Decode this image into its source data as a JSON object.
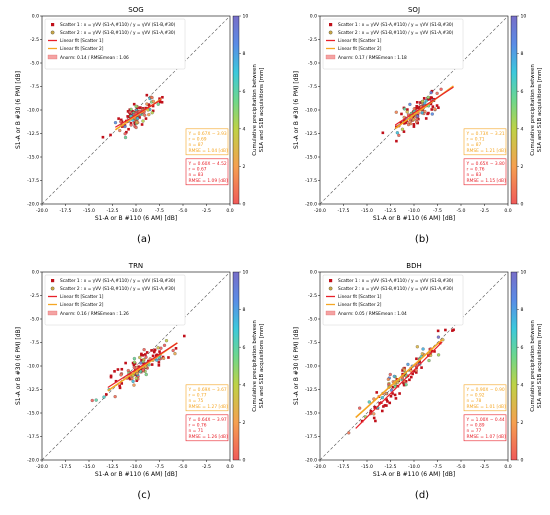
{
  "shared": {
    "xlabel": "S1-A or B #110 (6 AM) [dB]",
    "ylabel": "S1-A or B #30 (6 PM) [dB]",
    "cbar_label_line1": "Cumulative precipitation between",
    "cbar_label_line2": "S1A and S1B acquisitions [mm]",
    "cbar_ticks": [
      "0",
      "2",
      "4",
      "6",
      "8",
      "10"
    ],
    "x_ticks": [
      "-20.0",
      "-17.5",
      "-15.0",
      "-12.5",
      "-10.0",
      "-7.5",
      "-5.0",
      "-2.5",
      "0.0"
    ],
    "y_ticks": [
      "-20.0",
      "-17.5",
      "-15.0",
      "-12.5",
      "-10.0",
      "-7.5",
      "-5.0",
      "-2.5",
      "0.0"
    ],
    "legend": [
      {
        "label": "Scatter 1 : x = γVV (S1-A,#110) / y = γVV (S1-B,#30)"
      },
      {
        "label": "Scatter 2 : x = γVV (S1-B,#110) / y = γVV (S1-A,#30)"
      },
      {
        "label": "Linear fit [Scatter 1]"
      },
      {
        "label": "Linear fit [Scatter 2]"
      }
    ],
    "colors": {
      "scatter1_line": "#e8212a",
      "scatter2_line": "#f5a623",
      "one_to_one": "#555555"
    }
  },
  "chart_data": [
    {
      "type": "scatter",
      "letter": "(a)",
      "title": "SOG",
      "xlim": [
        -20,
        0
      ],
      "ylim": [
        -20,
        0
      ],
      "legend_extra": "Anorm: 0.14 / RMSEmean : 1.06",
      "fit1": {
        "slope": 0.6,
        "intercept": -4.52,
        "text": [
          "Y = 0.60X − 4.52",
          "r = 0.67",
          "n = 83",
          "RMSE = 1.09 [dB]"
        ]
      },
      "fit2": {
        "slope": 0.67,
        "intercept": -3.93,
        "text": [
          "Y = 0.67X − 3.93",
          "r = 0.69",
          "n = 87",
          "RMSE = 1.04 [dB]"
        ]
      },
      "fit_xrange": [
        -12.2,
        -7.3
      ],
      "cluster": {
        "cx": -9.8,
        "cy": -10.1,
        "sx": 1.1,
        "noise": 0.8
      }
    },
    {
      "type": "scatter",
      "letter": "(b)",
      "title": "SOJ",
      "xlim": [
        -20,
        0
      ],
      "ylim": [
        -20,
        0
      ],
      "legend_extra": "Anorm: 0.17 / RMSEmean : 1.18",
      "fit1": {
        "slope": 0.65,
        "intercept": -3.8,
        "text": [
          "Y = 0.65X − 3.80",
          "r = 0.76",
          "n = 83",
          "RMSE = 1.15 [dB]"
        ]
      },
      "fit2": {
        "slope": 0.73,
        "intercept": -3.21,
        "text": [
          "Y = 0.73X − 3.21",
          "r = 0.71",
          "n = 87",
          "RMSE = 1.21 [dB]"
        ]
      },
      "fit_xrange": [
        -12.0,
        -5.8
      ],
      "cluster": {
        "cx": -9.6,
        "cy": -10.0,
        "sx": 1.2,
        "noise": 0.9
      }
    },
    {
      "type": "scatter",
      "letter": "(c)",
      "title": "TRN",
      "xlim": [
        -20,
        0
      ],
      "ylim": [
        -20,
        0
      ],
      "legend_extra": "Anorm: 0.16 / RMSEmean : 1.26",
      "fit1": {
        "slope": 0.64,
        "intercept": -3.97,
        "text": [
          "Y = 0.64X − 3.97",
          "r = 0.76",
          "n = 71",
          "RMSE = 1.26 [dB]"
        ]
      },
      "fit2": {
        "slope": 0.69,
        "intercept": -3.67,
        "text": [
          "Y = 0.69X − 3.67",
          "r = 0.77",
          "n = 75",
          "RMSE = 1.27 [dB]"
        ]
      },
      "fit_xrange": [
        -13.0,
        -5.6
      ],
      "cluster": {
        "cx": -9.3,
        "cy": -9.8,
        "sx": 1.6,
        "noise": 1.0
      }
    },
    {
      "type": "scatter",
      "letter": "(d)",
      "title": "BDH",
      "xlim": [
        -20,
        0
      ],
      "ylim": [
        -20,
        0
      ],
      "legend_extra": "Anorm: 0.05 / RMSEmean : 1.04",
      "fit1": {
        "slope": 1.0,
        "intercept": -0.44,
        "text": [
          "Y = 1.00X − 0.44",
          "r = 0.89",
          "n = 77",
          "RMSE = 1.07 [dB]"
        ]
      },
      "fit2": {
        "slope": 0.9,
        "intercept": -0.9,
        "text": [
          "Y = 0.90X − 0.90",
          "r = 0.92",
          "n = 78",
          "RMSE = 1.01 [dB]"
        ]
      },
      "fit_xrange": [
        -16.2,
        -7.0
      ],
      "cluster": {
        "cx": -11.5,
        "cy": -11.6,
        "sx": 2.2,
        "noise": 0.9
      }
    }
  ]
}
